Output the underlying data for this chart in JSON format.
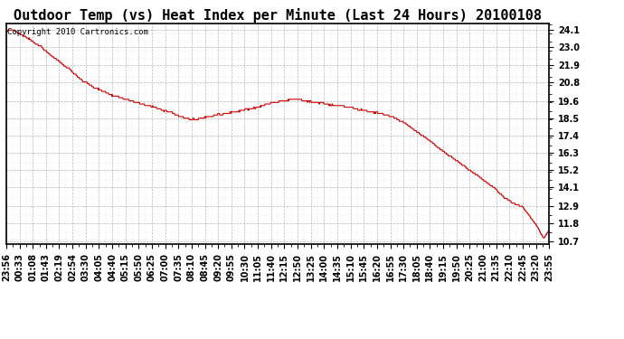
{
  "title": "Outdoor Temp (vs) Heat Index per Minute (Last 24 Hours) 20100108",
  "copyright_text": "Copyright 2010 Cartronics.com",
  "line_color": "#cc0000",
  "background_color": "#ffffff",
  "grid_color": "#b0b0b0",
  "yticks": [
    10.7,
    11.8,
    12.9,
    14.1,
    15.2,
    16.3,
    17.4,
    18.5,
    19.6,
    20.8,
    21.9,
    23.0,
    24.1
  ],
  "xtick_labels": [
    "23:56",
    "00:33",
    "01:08",
    "01:43",
    "02:19",
    "02:54",
    "03:30",
    "04:05",
    "04:40",
    "05:15",
    "05:50",
    "06:25",
    "07:00",
    "07:35",
    "08:10",
    "08:45",
    "09:20",
    "09:55",
    "10:30",
    "11:05",
    "11:40",
    "12:15",
    "12:50",
    "13:25",
    "14:00",
    "14:35",
    "15:10",
    "15:45",
    "16:20",
    "16:55",
    "17:30",
    "18:05",
    "18:40",
    "19:15",
    "19:50",
    "20:25",
    "21:00",
    "21:35",
    "22:10",
    "22:45",
    "23:20",
    "23:55"
  ],
  "ylim_min": 10.5,
  "ylim_max": 24.5,
  "title_fontsize": 11,
  "tick_fontsize": 7,
  "copyright_fontsize": 6.5,
  "control_x": [
    0.0,
    0.01,
    0.018,
    0.025,
    0.03,
    0.038,
    0.045,
    0.055,
    0.065,
    0.075,
    0.09,
    0.105,
    0.12,
    0.14,
    0.16,
    0.18,
    0.2,
    0.22,
    0.24,
    0.26,
    0.28,
    0.3,
    0.315,
    0.33,
    0.345,
    0.36,
    0.375,
    0.39,
    0.405,
    0.42,
    0.435,
    0.45,
    0.465,
    0.48,
    0.495,
    0.51,
    0.52,
    0.53,
    0.54,
    0.55,
    0.56,
    0.57,
    0.58,
    0.59,
    0.6,
    0.615,
    0.63,
    0.645,
    0.66,
    0.675,
    0.69,
    0.71,
    0.73,
    0.75,
    0.77,
    0.79,
    0.81,
    0.83,
    0.85,
    0.87,
    0.885,
    0.9,
    0.91,
    0.92,
    0.93,
    0.94,
    0.95,
    0.96,
    0.97,
    0.98,
    0.99,
    1.0
  ],
  "control_y": [
    24.0,
    24.1,
    24.0,
    23.9,
    23.8,
    23.6,
    23.5,
    23.2,
    23.0,
    22.7,
    22.3,
    21.9,
    21.5,
    20.9,
    20.5,
    20.2,
    19.9,
    19.7,
    19.5,
    19.3,
    19.1,
    18.9,
    18.7,
    18.5,
    18.4,
    18.5,
    18.6,
    18.7,
    18.8,
    18.9,
    19.0,
    19.1,
    19.2,
    19.4,
    19.5,
    19.6,
    19.65,
    19.7,
    19.65,
    19.6,
    19.55,
    19.5,
    19.45,
    19.4,
    19.35,
    19.3,
    19.2,
    19.1,
    19.0,
    18.9,
    18.8,
    18.6,
    18.3,
    17.8,
    17.3,
    16.8,
    16.3,
    15.8,
    15.3,
    14.8,
    14.4,
    14.0,
    13.7,
    13.4,
    13.2,
    13.0,
    12.9,
    12.5,
    12.0,
    11.5,
    10.85,
    11.4
  ]
}
